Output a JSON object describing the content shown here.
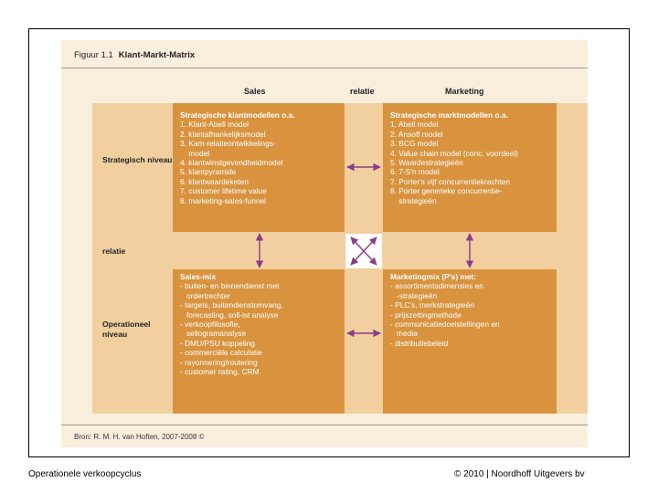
{
  "figure": {
    "number": "Figuur 1.1",
    "title": "Klant-Markt-Matrix",
    "columns": {
      "sales": "Sales",
      "relation": "relatie",
      "marketing": "Marketing"
    },
    "rows": {
      "strategic": "Strategisch niveau",
      "relation": "relatie",
      "operational": "Operationeel niveau"
    },
    "strategic_sales": {
      "title": "Strategische klantmodellen o.a.",
      "items": [
        "1. Klant-Abell model",
        "2. klantafhankelijksmodel",
        "3. Kam-relatieontwikkelings-",
        "    model",
        "4. klantwinstgevendheidmodel",
        "5. klantpyramide",
        "6. klantwaardeketen",
        "7. customer lifetime value",
        "8. marketing-sales-funnel"
      ]
    },
    "strategic_marketing": {
      "title": "Strategische marktmodellen o.a.",
      "items": [
        "1. Abell model",
        "2. Ansoff model",
        "3. BCG model",
        "4. Value chain model (conc. voordeel)",
        "5. Waardestrategieën",
        "6. 7-S'n model",
        "7. Porter's vijf concurrentiekrachten",
        "8. Porter generieke concurrentie-",
        "    strategieën"
      ]
    },
    "operational_sales": {
      "title": "Sales-mix",
      "items": [
        "- buiten- en binnendienst met",
        "   ordertrechter",
        "- targets, buitendienstomvang,",
        "   forecasting, soll-ist analyse",
        "- verkoopfilosofie,",
        "   sellogramanalyse",
        "- DMU/PSU koppeling",
        "- commerciële calculatie",
        "- rayonnering/routering",
        "- customer rating, CRM"
      ]
    },
    "operational_marketing": {
      "title": "Marketingmix (P's) met:",
      "items": [
        "- assortimentsdimensies en",
        "   -strategieën",
        "- PLC's, merkstrategieën",
        "- prijszettingmethode",
        "- communicatiedoelstellingen en",
        "   media",
        "- distributiebeleid"
      ]
    },
    "source": "Bron: R. M. H. van Hoften, 2007-2008 ©",
    "colors": {
      "cell": "#d9933f",
      "band": "#f1cf9f",
      "background": "#faeedd",
      "arrow": "#8b3d87"
    }
  },
  "footer": {
    "left": "Operationele verkoopcyclus",
    "right": "© 2010  |  Noordhoff Uitgevers bv"
  }
}
